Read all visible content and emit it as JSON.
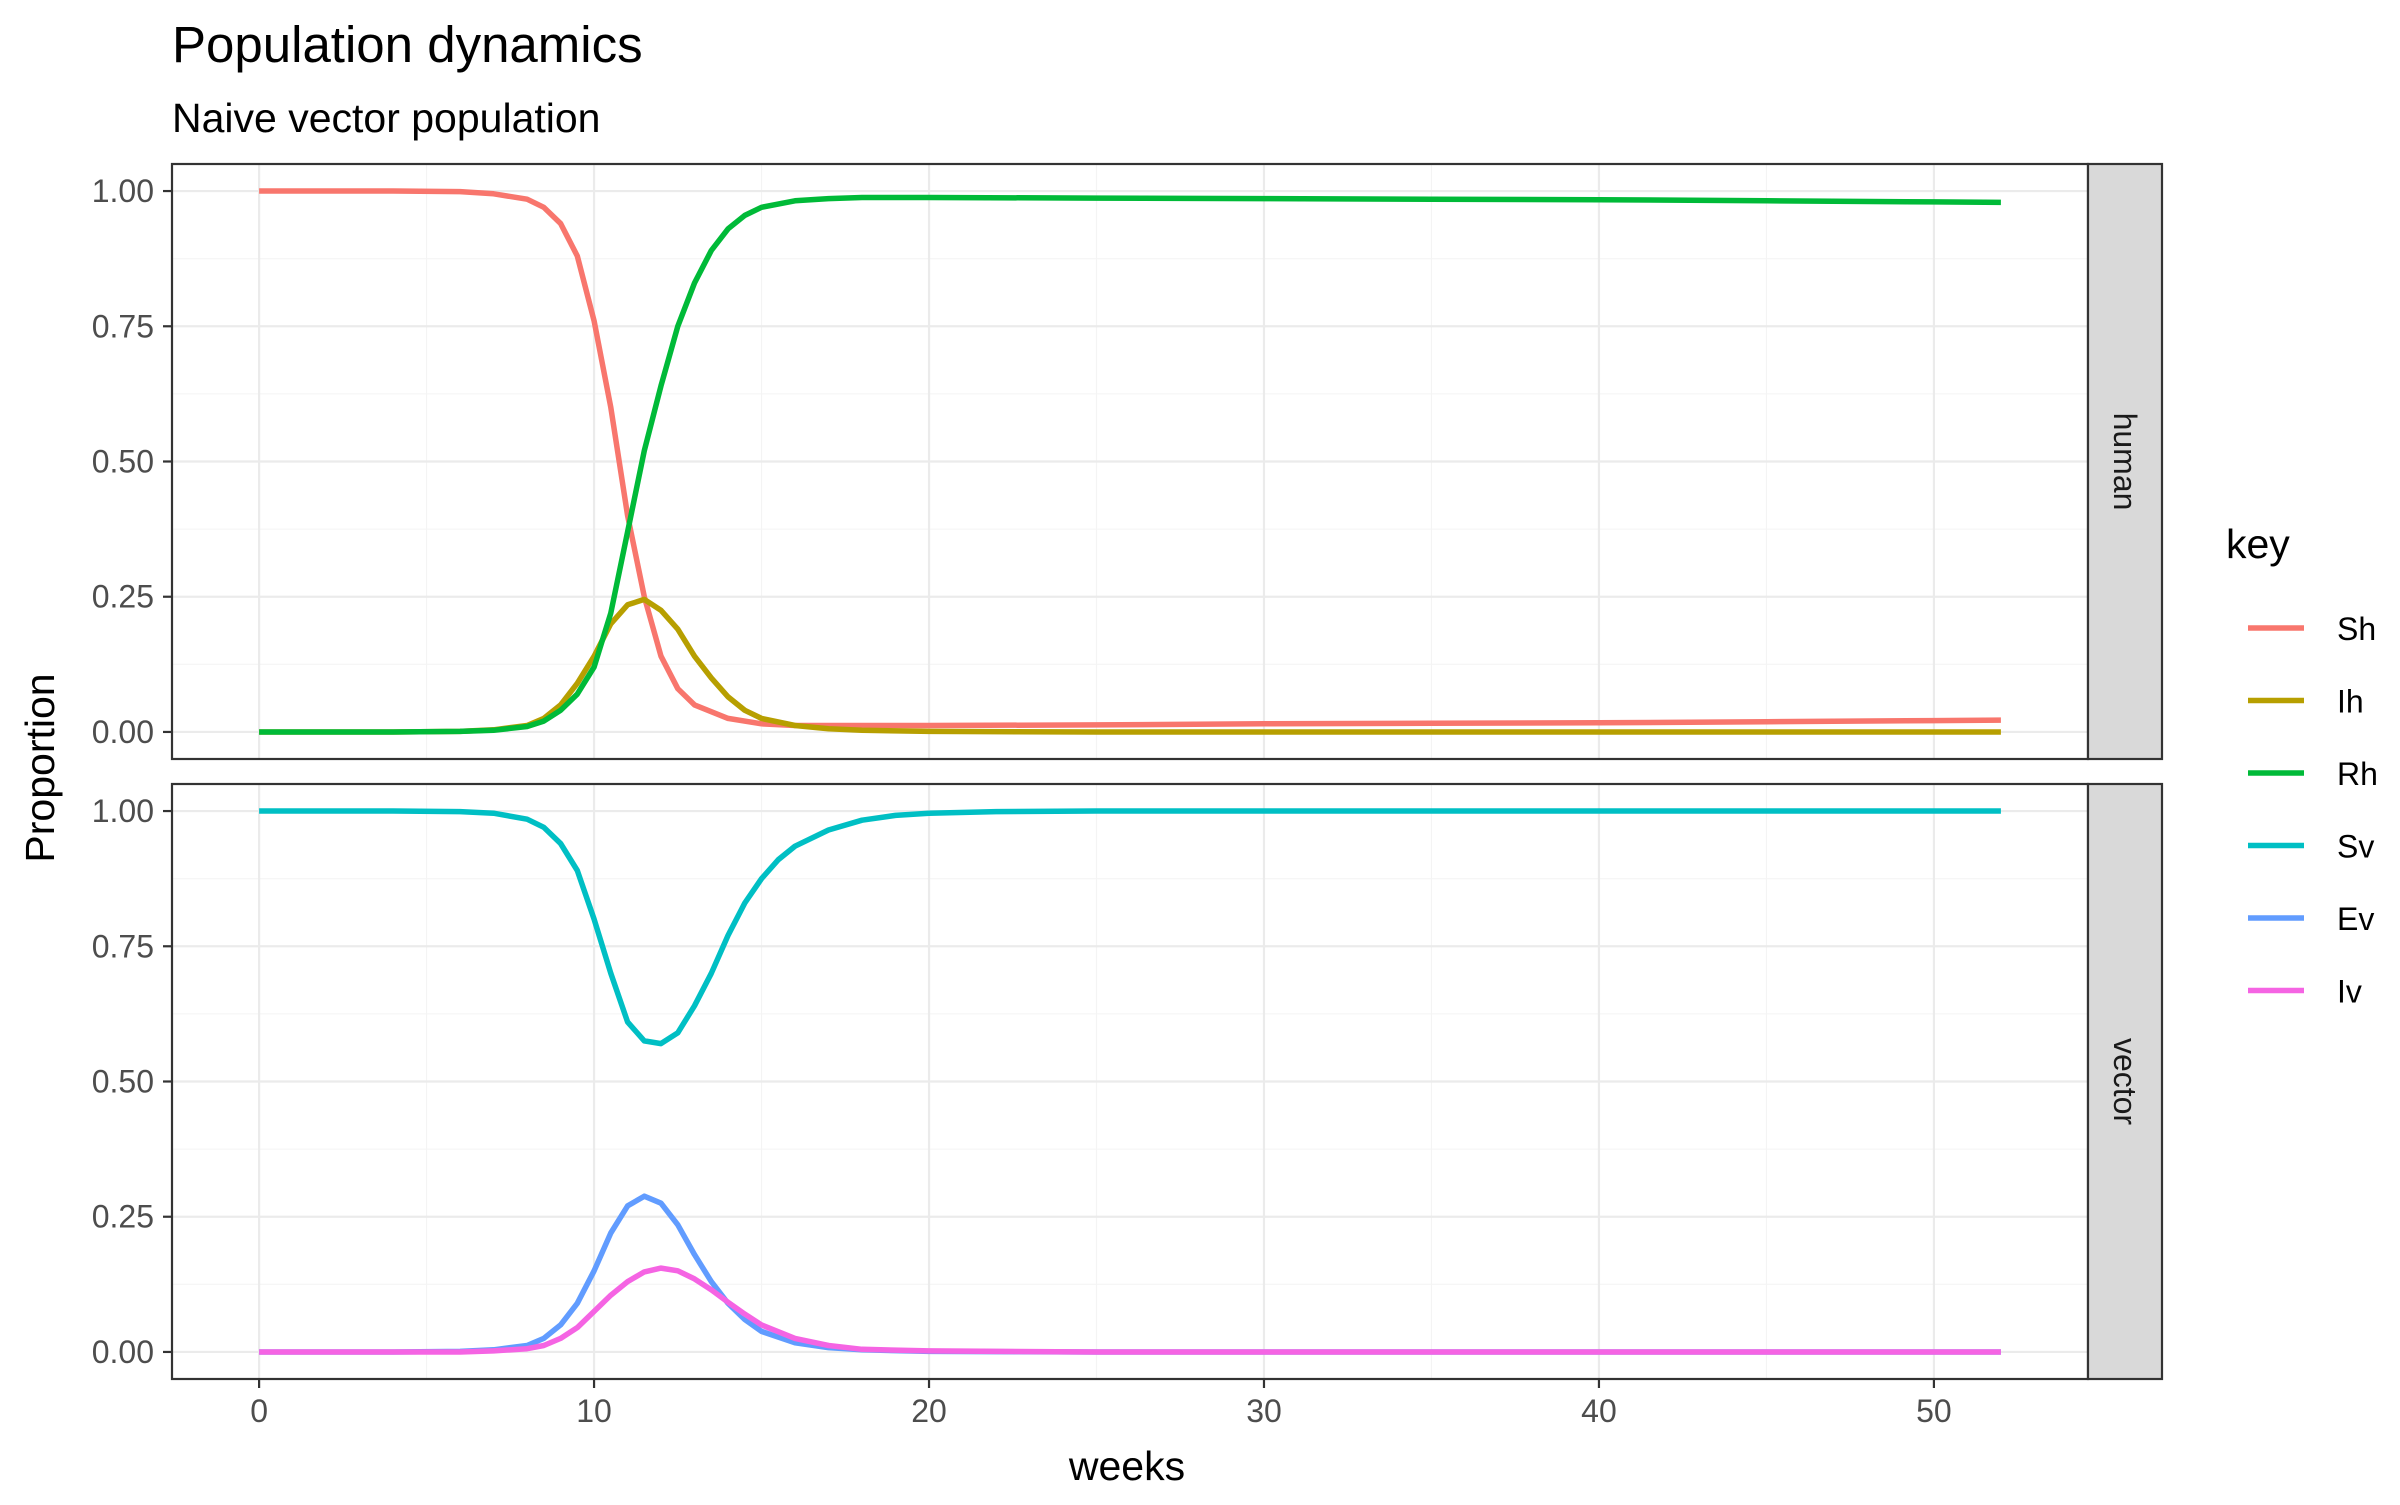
{
  "chart_data": {
    "type": "line",
    "title": "Population dynamics",
    "subtitle": "Naive vector population",
    "xlabel": "weeks",
    "ylabel": "Proportion",
    "xlim": [
      -2.6,
      54.6
    ],
    "ylim": [
      -0.05,
      1.05
    ],
    "x_ticks": [
      0,
      10,
      20,
      30,
      40,
      50
    ],
    "x_tick_labels": [
      "0",
      "10",
      "20",
      "30",
      "40",
      "50"
    ],
    "y_ticks": [
      0,
      0.25,
      0.5,
      0.75,
      1
    ],
    "y_tick_labels": [
      "0.00",
      "0.25",
      "0.50",
      "0.75",
      "1.00"
    ],
    "grid": true,
    "legend": {
      "title": "key",
      "position": "right",
      "entries": [
        {
          "key": "Sh",
          "label": "Sh",
          "color": "#F8766D"
        },
        {
          "key": "Ih",
          "label": "Ih",
          "color": "#B79F00"
        },
        {
          "key": "Rh",
          "label": "Rh",
          "color": "#00BA38"
        },
        {
          "key": "Sv",
          "label": "Sv",
          "color": "#00BFC4"
        },
        {
          "key": "Ev",
          "label": "Ev",
          "color": "#619CFF"
        },
        {
          "key": "Iv",
          "label": "Iv",
          "color": "#F564E3"
        }
      ]
    },
    "panels": [
      {
        "label": "human",
        "series": [
          {
            "key": "Sh",
            "color": "#F8766D",
            "x": [
              0,
              2,
              4,
              6,
              7,
              8,
              8.5,
              9,
              9.5,
              10,
              10.5,
              11,
              11.5,
              12,
              12.5,
              13,
              14,
              15,
              16,
              18,
              20,
              25,
              30,
              35,
              40,
              45,
              50,
              52
            ],
            "y": [
              1.0,
              1.0,
              1.0,
              0.999,
              0.995,
              0.985,
              0.97,
              0.94,
              0.88,
              0.76,
              0.6,
              0.4,
              0.25,
              0.14,
              0.08,
              0.05,
              0.025,
              0.015,
              0.012,
              0.012,
              0.012,
              0.013,
              0.015,
              0.016,
              0.017,
              0.019,
              0.021,
              0.022
            ]
          },
          {
            "key": "Ih",
            "color": "#B79F00",
            "x": [
              0,
              4,
              6,
              7,
              8,
              8.5,
              9,
              9.5,
              10,
              10.5,
              11,
              11.5,
              12,
              12.5,
              13,
              13.5,
              14,
              14.5,
              15,
              16,
              17,
              18,
              20,
              25,
              30,
              40,
              50,
              52
            ],
            "y": [
              0.0,
              0.0,
              0.001,
              0.004,
              0.012,
              0.025,
              0.05,
              0.09,
              0.14,
              0.2,
              0.235,
              0.245,
              0.225,
              0.19,
              0.14,
              0.1,
              0.065,
              0.04,
              0.025,
              0.012,
              0.006,
              0.003,
              0.001,
              0.0,
              0.0,
              0.0,
              0.0,
              0.0
            ]
          },
          {
            "key": "Rh",
            "color": "#00BA38",
            "x": [
              0,
              4,
              6,
              7,
              8,
              8.5,
              9,
              9.5,
              10,
              10.5,
              11,
              11.5,
              12,
              12.5,
              13,
              13.5,
              14,
              14.5,
              15,
              16,
              17,
              18,
              20,
              25,
              30,
              35,
              40,
              45,
              50,
              52
            ],
            "y": [
              0.0,
              0.0,
              0.001,
              0.003,
              0.01,
              0.02,
              0.04,
              0.07,
              0.12,
              0.22,
              0.37,
              0.52,
              0.64,
              0.75,
              0.83,
              0.89,
              0.93,
              0.955,
              0.97,
              0.982,
              0.986,
              0.988,
              0.988,
              0.987,
              0.986,
              0.985,
              0.984,
              0.982,
              0.98,
              0.979
            ]
          }
        ]
      },
      {
        "label": "vector",
        "series": [
          {
            "key": "Sv",
            "color": "#00BFC4",
            "x": [
              0,
              4,
              6,
              7,
              8,
              8.5,
              9,
              9.5,
              10,
              10.5,
              11,
              11.5,
              12,
              12.5,
              13,
              13.5,
              14,
              14.5,
              15,
              15.5,
              16,
              17,
              18,
              19,
              20,
              22,
              25,
              30,
              40,
              50,
              52
            ],
            "y": [
              1.0,
              1.0,
              0.999,
              0.996,
              0.985,
              0.97,
              0.94,
              0.89,
              0.8,
              0.7,
              0.61,
              0.575,
              0.57,
              0.59,
              0.64,
              0.7,
              0.77,
              0.83,
              0.875,
              0.91,
              0.935,
              0.965,
              0.983,
              0.992,
              0.996,
              0.999,
              1.0,
              1.0,
              1.0,
              1.0,
              1.0
            ]
          },
          {
            "key": "Ev",
            "color": "#619CFF",
            "x": [
              0,
              4,
              6,
              7,
              8,
              8.5,
              9,
              9.5,
              10,
              10.5,
              11,
              11.5,
              12,
              12.5,
              13,
              13.5,
              14,
              14.5,
              15,
              16,
              17,
              18,
              20,
              25,
              30,
              40,
              50,
              52
            ],
            "y": [
              0.0,
              0.0,
              0.001,
              0.004,
              0.012,
              0.025,
              0.05,
              0.09,
              0.15,
              0.22,
              0.27,
              0.288,
              0.275,
              0.235,
              0.18,
              0.13,
              0.09,
              0.06,
              0.038,
              0.017,
              0.008,
              0.004,
              0.001,
              0.0,
              0.0,
              0.0,
              0.0,
              0.0
            ]
          },
          {
            "key": "Iv",
            "color": "#F564E3",
            "x": [
              0,
              4,
              6,
              7,
              8,
              8.5,
              9,
              9.5,
              10,
              10.5,
              11,
              11.5,
              12,
              12.5,
              13,
              13.5,
              14,
              14.5,
              15,
              16,
              17,
              18,
              20,
              25,
              30,
              40,
              50,
              52
            ],
            "y": [
              0.0,
              0.0,
              0.0,
              0.002,
              0.006,
              0.012,
              0.025,
              0.045,
              0.075,
              0.105,
              0.13,
              0.148,
              0.155,
              0.15,
              0.135,
              0.115,
              0.092,
              0.07,
              0.05,
              0.025,
              0.012,
              0.005,
              0.002,
              0.0,
              0.0,
              0.0,
              0.0,
              0.0
            ]
          }
        ]
      }
    ]
  }
}
